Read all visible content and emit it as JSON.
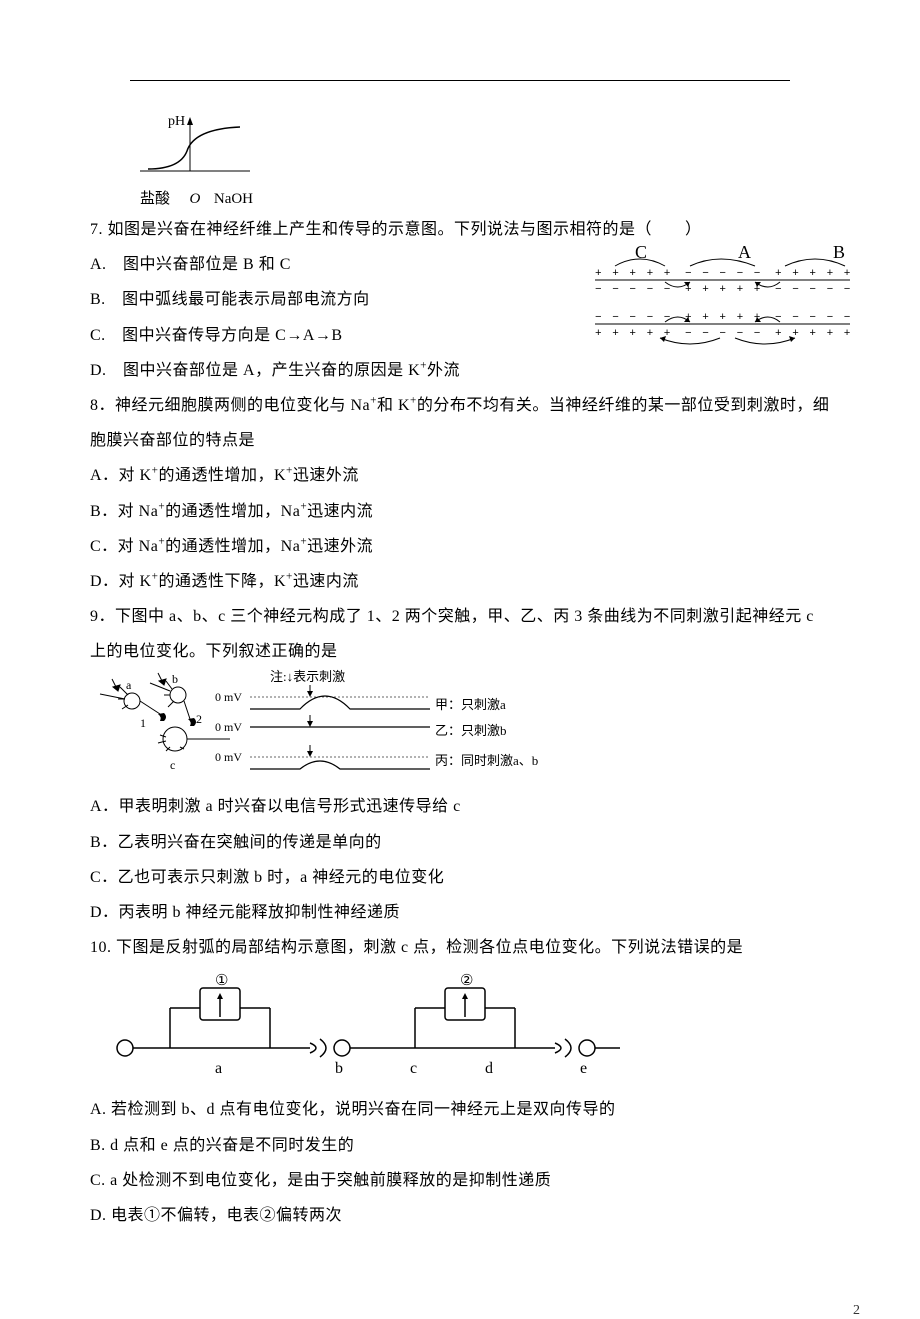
{
  "page_number": "2",
  "figure_ph": {
    "y_label": "pH",
    "x_left": "盐酸",
    "x_origin": "O",
    "x_right": "NaOH",
    "axis_color": "#000000",
    "curve_color": "#000000"
  },
  "q7": {
    "stem": "7. 如图是兴奋在神经纤维上产生和传导的示意图。下列说法与图示相符的是（　　）",
    "A": "A.　图中兴奋部位是 B 和 C",
    "B": "B.　图中弧线最可能表示局部电流方向",
    "C": "C.　图中兴奋传导方向是 C→A→B",
    "D_html": "D.　图中兴奋部位是 A，产生兴奋的原因是 K<sup>+</sup>外流",
    "figure": {
      "labels": [
        "C",
        "A",
        "B"
      ],
      "row1_segments": [
        "+  +  +  +  +",
        "−  −  −  −  −",
        "+  +  +  +  +"
      ],
      "row2_segments": [
        "−  −  −  −  −",
        "+  +  +  +  +",
        "−  −  −  −  −"
      ],
      "row3_segments": [
        "−  −  −  −  −",
        "+  +  +  +  +",
        "−  −  −  −  −"
      ],
      "row4_segments": [
        "+  +  +  +  +",
        "−  −  −  −  −",
        "+  +  +  +  +"
      ],
      "line_color": "#000000"
    }
  },
  "q8": {
    "stem_html": "8．神经元细胞膜两侧的电位变化与 Na<sup>+</sup>和 K<sup>+</sup>的分布不均有关。当神经纤维的某一部位受到刺激时，细胞膜兴奋部位的特点是",
    "A_html": "A．对 K<sup>+</sup>的通透性增加，K<sup>+</sup>迅速外流",
    "B_html": "B．对 Na<sup>+</sup>的通透性增加，Na<sup>+</sup>迅速内流",
    "C_html": "C．对 Na<sup>+</sup>的通透性增加，Na<sup>+</sup>迅速外流",
    "D_html": "D．对 K<sup>+</sup>的通透性下降，K<sup>+</sup>迅速内流"
  },
  "q9": {
    "stem": "9．下图中 a、b、c 三个神经元构成了 1、2 两个突触，甲、乙、丙 3 条曲线为不同刺激引起神经元 c 上的电位变化。下列叙述正确的是",
    "A": "A．甲表明刺激 a 时兴奋以电信号形式迅速传导给 c",
    "B": "B．乙表明兴奋在突触间的传递是单向的",
    "C": "C．乙也可表示只刺激 b 时，a 神经元的电位变化",
    "D": "D．丙表明 b 神经元能释放抑制性神经递质",
    "figure": {
      "note": "注:↓表示刺激",
      "zero": "0 mV",
      "labels": {
        "a": "a",
        "b": "b",
        "c": "c",
        "n1": "1",
        "n2": "2"
      },
      "line_jia": "甲：只刺激a",
      "line_yi": "乙：只刺激b",
      "line_bing": "丙：同时刺激a、b",
      "line_color": "#000000",
      "dotted_color": "#666666"
    }
  },
  "q10": {
    "stem": "10.  下图是反射弧的局部结构示意图，刺激 c 点，检测各位点电位变化。下列说法错误的是",
    "A": "A.  若检测到 b、d 点有电位变化，说明兴奋在同一神经元上是双向传导的",
    "B": "B.  d 点和 e 点的兴奋是不同时发生的",
    "C": "C.  a 处检测不到电位变化，是由于突触前膜释放的是抑制性递质",
    "D": "D.  电表①不偏转，电表②偏转两次",
    "figure": {
      "meter1": "①",
      "meter2": "②",
      "points": [
        "a",
        "b",
        "c",
        "d",
        "e"
      ],
      "line_color": "#000000"
    }
  }
}
